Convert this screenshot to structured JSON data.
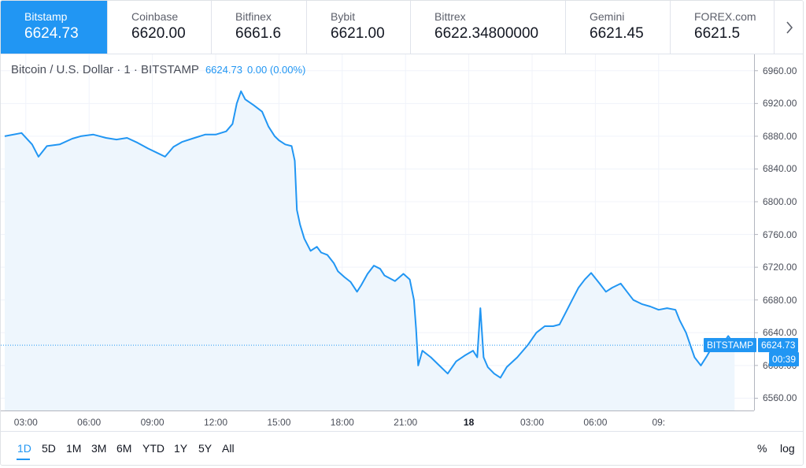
{
  "tickers": [
    {
      "name": "Bitstamp",
      "price": "6624.73",
      "active": true
    },
    {
      "name": "Coinbase",
      "price": "6620.00"
    },
    {
      "name": "Bitfinex",
      "price": "6661.6"
    },
    {
      "name": "Bybit",
      "price": "6621.00"
    },
    {
      "name": "Bittrex",
      "price": "6622.34800000"
    },
    {
      "name": "Gemini",
      "price": "6621.45"
    },
    {
      "name": "FOREX.com",
      "price": "6621.5"
    }
  ],
  "legend": {
    "symbol": "Bitcoin / U.S. Dollar · 1 · BITSTAMP",
    "value": "6624.73",
    "change": "0.00 (0.00%)"
  },
  "tags": {
    "exchange": "BITSTAMP",
    "last_price": "6624.73",
    "countdown": "00:39"
  },
  "colors": {
    "accent": "#2196f3",
    "line": "#2196f3",
    "fill": "#eef6fd"
  },
  "chart_data": {
    "type": "area",
    "title": "Bitcoin / U.S. Dollar · 1 · BITSTAMP",
    "xlabel": "",
    "ylabel": "",
    "x_tick_labels": [
      "03:00",
      "06:00",
      "09:00",
      "12:00",
      "15:00",
      "18:00",
      "21:00",
      "18",
      "03:00",
      "06:00",
      "09:"
    ],
    "y_tick_labels": [
      "6960.00",
      "6920.00",
      "6880.00",
      "6840.00",
      "6800.00",
      "6760.00",
      "6720.00",
      "6680.00",
      "6640.00",
      "6600.00",
      "6560.00"
    ],
    "ylim": [
      6545,
      6980
    ],
    "grid": true,
    "x_unit": "hours since 02:00",
    "series": [
      {
        "points": [
          [
            0.0,
            6880
          ],
          [
            0.8,
            6884
          ],
          [
            1.3,
            6870
          ],
          [
            1.6,
            6855
          ],
          [
            2.0,
            6868
          ],
          [
            2.6,
            6870
          ],
          [
            3.2,
            6877
          ],
          [
            3.6,
            6880
          ],
          [
            4.2,
            6882
          ],
          [
            4.8,
            6878
          ],
          [
            5.3,
            6876
          ],
          [
            5.8,
            6878
          ],
          [
            6.3,
            6872
          ],
          [
            6.8,
            6865
          ],
          [
            7.2,
            6860
          ],
          [
            7.6,
            6855
          ],
          [
            8.0,
            6867
          ],
          [
            8.4,
            6873
          ],
          [
            9.0,
            6878
          ],
          [
            9.5,
            6882
          ],
          [
            10.0,
            6882
          ],
          [
            10.5,
            6886
          ],
          [
            10.8,
            6895
          ],
          [
            11.0,
            6920
          ],
          [
            11.2,
            6935
          ],
          [
            11.4,
            6925
          ],
          [
            11.8,
            6918
          ],
          [
            12.2,
            6910
          ],
          [
            12.5,
            6892
          ],
          [
            12.8,
            6880
          ],
          [
            13.0,
            6875
          ],
          [
            13.3,
            6870
          ],
          [
            13.6,
            6868
          ],
          [
            13.75,
            6850
          ],
          [
            13.85,
            6790
          ],
          [
            14.0,
            6772
          ],
          [
            14.2,
            6755
          ],
          [
            14.5,
            6740
          ],
          [
            14.8,
            6745
          ],
          [
            15.0,
            6738
          ],
          [
            15.3,
            6735
          ],
          [
            15.6,
            6725
          ],
          [
            15.8,
            6715
          ],
          [
            16.1,
            6708
          ],
          [
            16.4,
            6702
          ],
          [
            16.7,
            6690
          ],
          [
            16.9,
            6698
          ],
          [
            17.2,
            6712
          ],
          [
            17.5,
            6722
          ],
          [
            17.8,
            6718
          ],
          [
            18.0,
            6710
          ],
          [
            18.5,
            6703
          ],
          [
            18.9,
            6712
          ],
          [
            19.2,
            6705
          ],
          [
            19.4,
            6680
          ],
          [
            19.5,
            6645
          ],
          [
            19.6,
            6600
          ],
          [
            19.8,
            6618
          ],
          [
            20.2,
            6610
          ],
          [
            20.6,
            6600
          ],
          [
            21.0,
            6590
          ],
          [
            21.4,
            6605
          ],
          [
            21.8,
            6612
          ],
          [
            22.2,
            6618
          ],
          [
            22.4,
            6610
          ],
          [
            22.55,
            6670
          ],
          [
            22.7,
            6610
          ],
          [
            22.9,
            6598
          ],
          [
            23.2,
            6590
          ],
          [
            23.5,
            6585
          ],
          [
            23.8,
            6598
          ],
          [
            24.3,
            6610
          ],
          [
            24.8,
            6625
          ],
          [
            25.2,
            6640
          ],
          [
            25.6,
            6648
          ],
          [
            26.0,
            6648
          ],
          [
            26.3,
            6650
          ],
          [
            26.6,
            6665
          ],
          [
            26.9,
            6680
          ],
          [
            27.2,
            6695
          ],
          [
            27.5,
            6705
          ],
          [
            27.8,
            6713
          ],
          [
            28.2,
            6700
          ],
          [
            28.5,
            6690
          ],
          [
            28.8,
            6695
          ],
          [
            29.2,
            6700
          ],
          [
            29.5,
            6690
          ],
          [
            29.8,
            6680
          ],
          [
            30.2,
            6675
          ],
          [
            30.6,
            6672
          ],
          [
            31.0,
            6668
          ],
          [
            31.4,
            6670
          ],
          [
            31.8,
            6668
          ],
          [
            32.0,
            6655
          ],
          [
            32.3,
            6640
          ],
          [
            32.5,
            6625
          ],
          [
            32.7,
            6610
          ],
          [
            33.0,
            6600
          ],
          [
            33.3,
            6612
          ],
          [
            33.7,
            6630
          ],
          [
            34.0,
            6625
          ],
          [
            34.3,
            6636
          ],
          [
            34.6,
            6625
          ]
        ]
      }
    ]
  },
  "toolbar": {
    "ranges": [
      "1D",
      "5D",
      "1M",
      "3M",
      "6M",
      "YTD",
      "1Y",
      "5Y",
      "All"
    ],
    "active_range": "1D",
    "percent": "%",
    "log": "log"
  }
}
